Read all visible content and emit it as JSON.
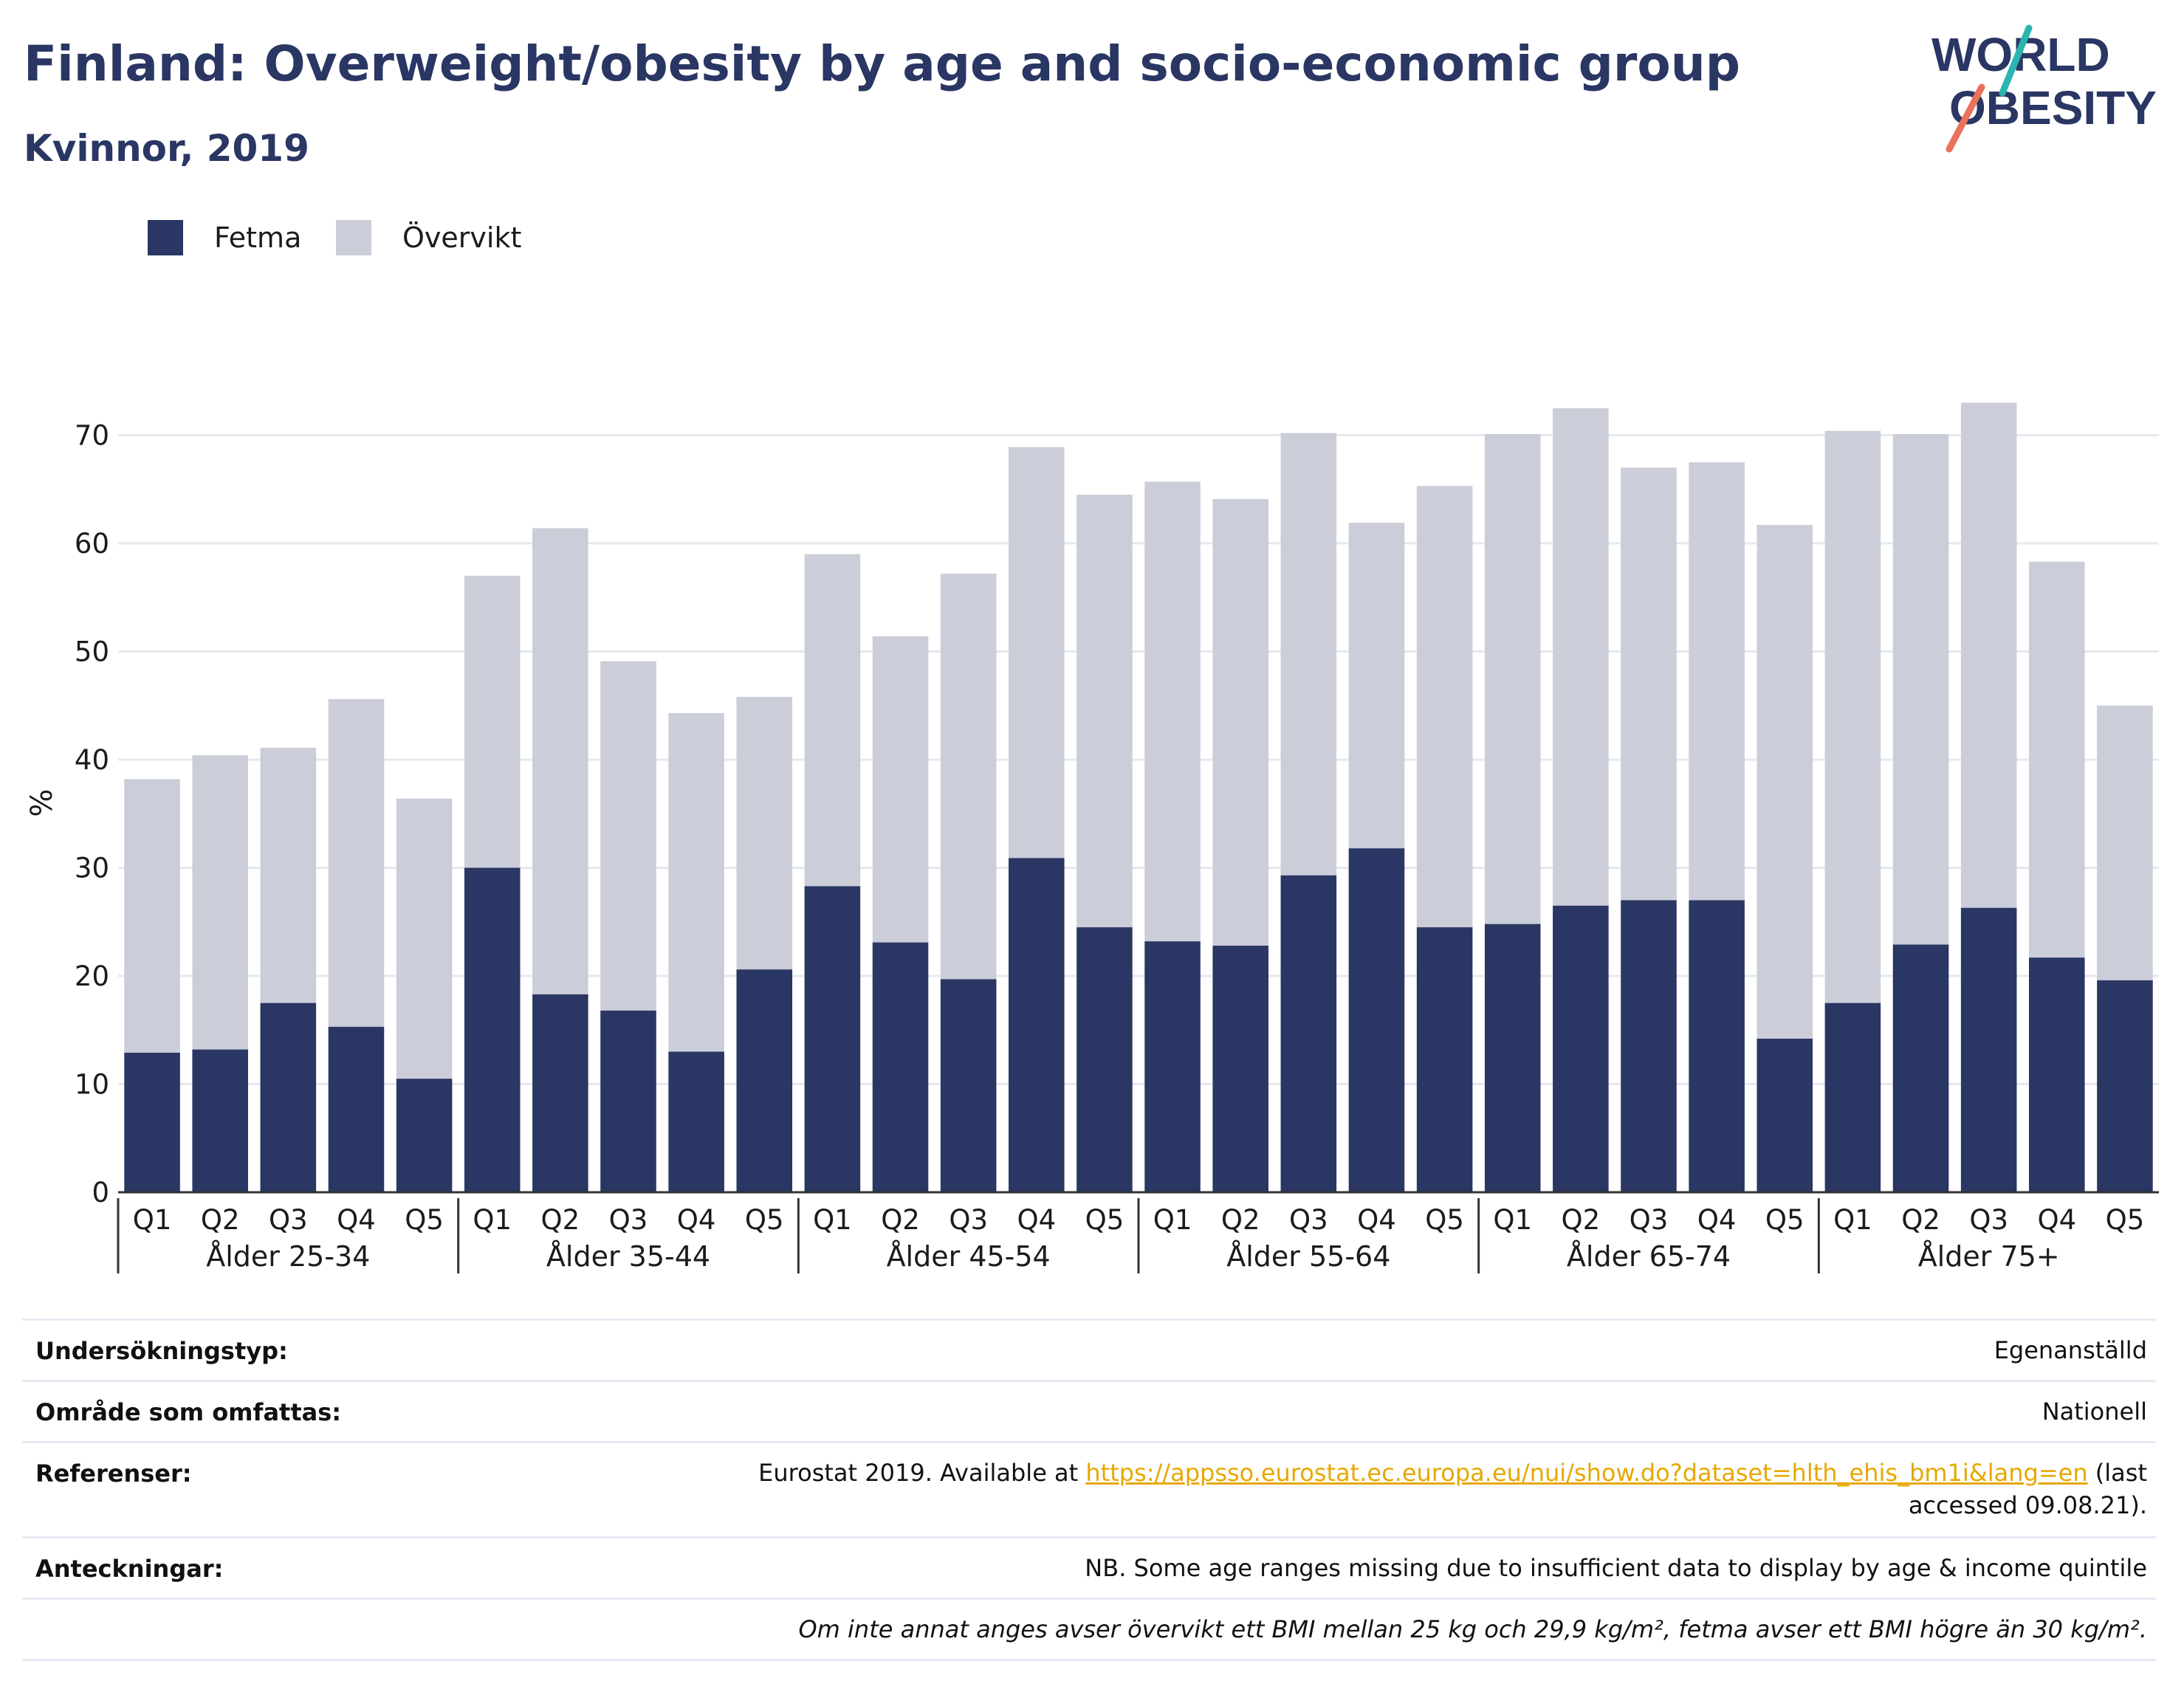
{
  "title": "Finland: Overweight/obesity by age and socio-economic group",
  "subtitle": "Kvinnor, 2019",
  "logo": {
    "line1": "WORLD",
    "line2": "OBESITY",
    "accent_teal": "#2bb5b0",
    "accent_coral": "#e8735a"
  },
  "colors": {
    "fetma": "#2a3663",
    "overvikt": "#cbcdd9",
    "title": "#2a3663",
    "grid": "#e6e8ee"
  },
  "legend": [
    {
      "name": "Fetma",
      "color": "#2a3663"
    },
    {
      "name": "Övervikt",
      "color": "#cbcdd9"
    }
  ],
  "chart_data": {
    "type": "bar",
    "stacked": true,
    "ylabel": "%",
    "ylim": [
      0,
      80
    ],
    "yticks": [
      0,
      10,
      20,
      30,
      40,
      50,
      60,
      70
    ],
    "grid": true,
    "legend_position": "top-left",
    "groups": [
      "Ålder 25-34",
      "Ålder 35-44",
      "Ålder 45-54",
      "Ålder 55-64",
      "Ålder 65-74",
      "Ålder 75+"
    ],
    "categories": [
      "Q1",
      "Q2",
      "Q3",
      "Q4",
      "Q5"
    ],
    "series": [
      {
        "name": "Fetma",
        "color": "#2a3663",
        "values": [
          [
            12.9,
            13.2,
            17.5,
            15.3,
            10.5
          ],
          [
            30.0,
            18.3,
            16.8,
            13.0,
            20.6
          ],
          [
            28.3,
            23.1,
            19.7,
            30.9,
            24.5
          ],
          [
            23.2,
            22.8,
            29.3,
            31.8,
            24.5
          ],
          [
            24.8,
            26.5,
            27.0,
            27.0,
            14.2
          ],
          [
            17.5,
            22.9,
            26.3,
            21.7,
            19.6
          ]
        ]
      },
      {
        "name": "Övervikt",
        "color": "#cbcdd9",
        "values": [
          [
            25.3,
            27.2,
            23.6,
            30.3,
            25.9
          ],
          [
            27.0,
            43.1,
            32.3,
            31.3,
            25.2
          ],
          [
            30.7,
            28.3,
            37.5,
            38.0,
            40.0
          ],
          [
            42.5,
            41.3,
            40.9,
            30.1,
            40.8
          ],
          [
            45.3,
            46.0,
            40.0,
            40.5,
            47.5
          ],
          [
            52.9,
            47.2,
            46.7,
            36.6,
            25.4
          ]
        ]
      }
    ]
  },
  "meta": [
    {
      "label": "Undersökningstyp:",
      "value": "Egenanställd"
    },
    {
      "label": "Område som omfattas:",
      "value": "Nationell"
    },
    {
      "label": "Referenser:",
      "value_prefix": "Eurostat 2019. Available at ",
      "link": "https://appsso.eurostat.ec.europa.eu/nui/show.do?dataset=hlth_ehis_bm1i&lang=en",
      "value_suffix": " (last accessed 09.08.21)."
    },
    {
      "label": "Anteckningar:",
      "value": "NB. Some age ranges missing due to insufficient data to display by age & income quintile"
    },
    {
      "label": "",
      "value": "Om inte annat anges avser övervikt ett BMI mellan 25 kg och 29,9 kg/m², fetma avser ett BMI högre än 30 kg/m²."
    }
  ]
}
